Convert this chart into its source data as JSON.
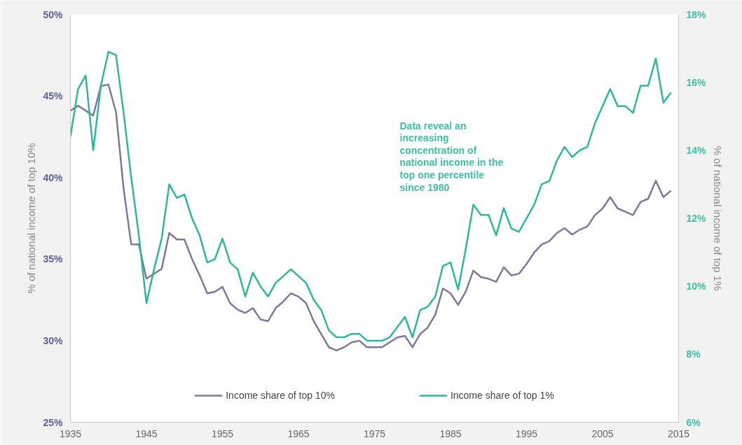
{
  "chart_data": {
    "type": "line",
    "xlabel": null,
    "ylabel": "% of national income of top 10%",
    "y2label": "% of national income of top 1%",
    "x": [
      1935,
      1936,
      1937,
      1938,
      1939,
      1940,
      1941,
      1942,
      1943,
      1944,
      1945,
      1946,
      1947,
      1948,
      1949,
      1950,
      1951,
      1952,
      1953,
      1954,
      1955,
      1956,
      1957,
      1958,
      1959,
      1960,
      1961,
      1962,
      1963,
      1964,
      1965,
      1966,
      1967,
      1968,
      1969,
      1970,
      1971,
      1972,
      1973,
      1974,
      1975,
      1976,
      1977,
      1978,
      1979,
      1980,
      1981,
      1982,
      1983,
      1984,
      1985,
      1986,
      1987,
      1988,
      1989,
      1990,
      1991,
      1992,
      1993,
      1994,
      1995,
      1996,
      1997,
      1998,
      1999,
      2000,
      2001,
      2002,
      2003,
      2004,
      2005,
      2006,
      2007,
      2008,
      2009,
      2010,
      2011,
      2012,
      2013,
      2014
    ],
    "series": [
      {
        "name": "Income share of top 10%",
        "color": "#7a7a9e",
        "values": [
          44.1,
          44.4,
          44.1,
          43.8,
          45.6,
          45.7,
          44.0,
          39.3,
          35.9,
          35.9,
          33.8,
          34.1,
          34.4,
          36.6,
          36.2,
          36.2,
          35.0,
          34.0,
          32.9,
          33.0,
          33.3,
          32.3,
          31.9,
          31.7,
          32.0,
          31.3,
          31.2,
          32.0,
          32.4,
          32.9,
          32.7,
          32.3,
          31.2,
          30.4,
          29.6,
          29.4,
          29.6,
          29.9,
          30.0,
          29.6,
          29.6,
          29.6,
          29.9,
          30.2,
          30.3,
          29.6,
          30.4,
          30.8,
          31.6,
          33.2,
          32.9,
          32.2,
          33.0,
          34.3,
          33.9,
          33.8,
          33.6,
          34.5,
          34.0,
          34.1,
          34.7,
          35.4,
          35.9,
          36.1,
          36.6,
          36.9,
          36.5,
          36.8,
          37.0,
          37.7,
          38.1,
          38.8,
          38.1,
          37.9,
          37.7,
          38.5,
          38.7,
          39.8,
          38.8,
          39.2
        ]
      },
      {
        "name": "Income share of top 1%",
        "color": "#2db89c",
        "axis": "y2",
        "values": [
          14.4,
          15.8,
          16.2,
          14.0,
          15.9,
          16.9,
          16.8,
          15.1,
          13.2,
          11.5,
          9.5,
          10.5,
          11.4,
          13.0,
          12.6,
          12.7,
          12.0,
          11.5,
          10.7,
          10.8,
          11.4,
          10.7,
          10.5,
          9.7,
          10.4,
          10.0,
          9.7,
          10.1,
          10.3,
          10.5,
          10.3,
          10.1,
          9.6,
          9.3,
          8.7,
          8.5,
          8.5,
          8.6,
          8.6,
          8.4,
          8.4,
          8.4,
          8.5,
          8.8,
          9.1,
          8.5,
          9.3,
          9.4,
          9.7,
          10.6,
          10.7,
          9.9,
          11.1,
          12.4,
          12.1,
          12.1,
          11.5,
          12.3,
          11.7,
          11.6,
          12.0,
          12.4,
          13.0,
          13.1,
          13.7,
          14.1,
          13.8,
          14.0,
          14.1,
          14.8,
          15.3,
          15.8,
          15.3,
          15.3,
          15.1,
          15.9,
          15.9,
          16.7,
          15.4,
          15.7
        ]
      }
    ],
    "xlim": [
      1935,
      2015
    ],
    "xticks": [
      1935,
      1945,
      1955,
      1965,
      1975,
      1985,
      1995,
      2005,
      2015
    ],
    "ylim": [
      25,
      50
    ],
    "yticks": [
      {
        "value": 25,
        "label": "25%"
      },
      {
        "value": 30,
        "label": "30%"
      },
      {
        "value": 35,
        "label": "35%"
      },
      {
        "value": 40,
        "label": "40%"
      },
      {
        "value": 45,
        "label": "45%"
      },
      {
        "value": 50,
        "label": "50%"
      }
    ],
    "y2lim": [
      6,
      18
    ],
    "y2ticks": [
      {
        "value": 6,
        "label": "6%"
      },
      {
        "value": 8,
        "label": "8%"
      },
      {
        "value": 10,
        "label": "10%"
      },
      {
        "value": 12,
        "label": "12%"
      },
      {
        "value": 14,
        "label": "14%"
      },
      {
        "value": 16,
        "label": "16%"
      },
      {
        "value": 18,
        "label": "18%"
      }
    ],
    "annotations": [
      "Data reveal an\nincreasing\nconcentration of\nnational income in the\ntop one percentile\nsince 1980"
    ],
    "grid": false,
    "legend": "bottom",
    "marker": "none",
    "line_style": "solid"
  }
}
